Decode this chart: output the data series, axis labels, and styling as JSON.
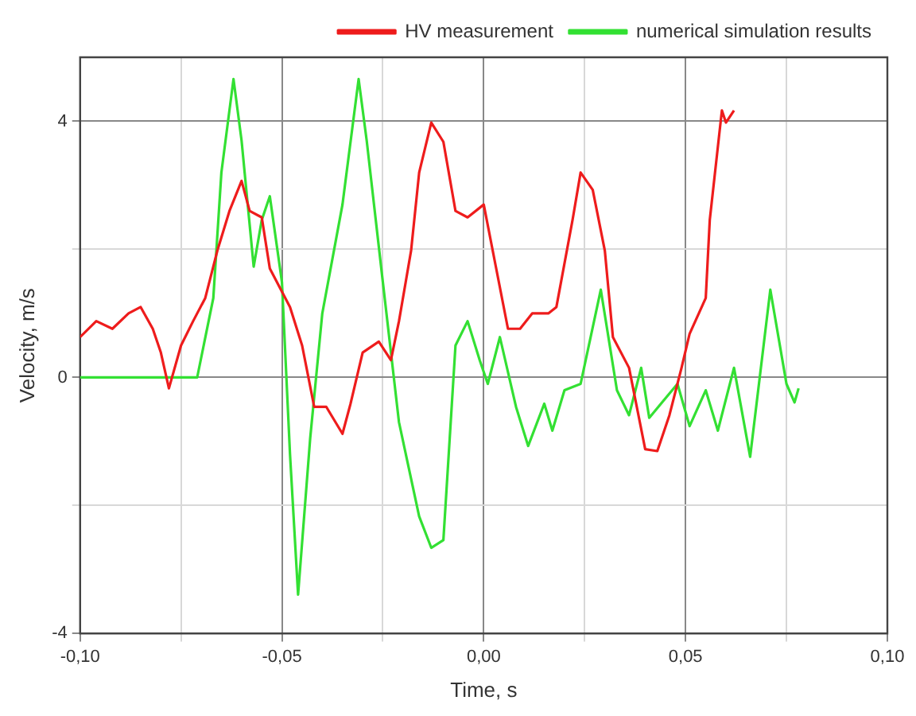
{
  "chart_data": {
    "type": "line",
    "xlabel": "Time, s",
    "ylabel": "Velocity, m/s",
    "xlim": [
      -0.1,
      0.1
    ],
    "xticks": [
      {
        "value": -0.1,
        "label": "-0,10"
      },
      {
        "value": -0.075,
        "label": null
      },
      {
        "value": -0.05,
        "label": "-0,05"
      },
      {
        "value": -0.025,
        "label": null
      },
      {
        "value": 0,
        "label": "0,00"
      },
      {
        "value": 0.025,
        "label": null
      },
      {
        "value": 0.05,
        "label": "0,05"
      },
      {
        "value": 0.075,
        "label": null
      },
      {
        "value": 0.1,
        "label": "0,10"
      }
    ],
    "ylim": [
      -4,
      5
    ],
    "yticks": [
      -4,
      {
        "value": -2,
        "label": null
      },
      0,
      {
        "value": 2,
        "label": null
      },
      4
    ],
    "grid": true,
    "legend": "top right",
    "marker": "none",
    "line_style": "solid",
    "series": [
      {
        "name": "HV measurement",
        "color": "#ee1c1c",
        "x": [
          -0.1,
          -0.096,
          -0.092,
          -0.088,
          -0.085,
          -0.082,
          -0.08,
          -0.078,
          -0.075,
          -0.072,
          -0.069,
          -0.066,
          -0.063,
          -0.06,
          -0.058,
          -0.055,
          -0.053,
          -0.048,
          -0.045,
          -0.042,
          -0.039,
          -0.035,
          -0.033,
          -0.03,
          -0.026,
          -0.023,
          -0.021,
          -0.018,
          -0.016,
          -0.013,
          -0.01,
          -0.007,
          -0.004,
          0,
          0.003,
          0.006,
          0.009,
          0.012,
          0.016,
          0.018,
          0.022,
          0.024,
          0.027,
          0.03,
          0.032,
          0.036,
          0.04,
          0.043,
          0.046,
          0.049,
          0.051,
          0.055,
          0.056,
          0.059,
          0.06,
          0.062
        ],
        "values": [
          0.63,
          0.88,
          0.76,
          1.0,
          1.1,
          0.76,
          0.39,
          -0.17,
          0.5,
          0.88,
          1.24,
          1.98,
          2.6,
          3.07,
          2.6,
          2.5,
          1.7,
          1.1,
          0.5,
          -0.46,
          -0.46,
          -0.88,
          -0.41,
          0.39,
          0.56,
          0.27,
          0.88,
          1.98,
          3.2,
          3.98,
          3.68,
          2.6,
          2.5,
          2.7,
          1.73,
          0.76,
          0.76,
          1.0,
          1.0,
          1.1,
          2.46,
          3.2,
          2.93,
          1.98,
          0.63,
          0.15,
          -1.12,
          -1.15,
          -0.59,
          0.15,
          0.68,
          1.24,
          2.46,
          4.17,
          3.98,
          4.17
        ]
      },
      {
        "name": "numerical simulation results",
        "color": "#33e033",
        "x": [
          -0.1,
          -0.071,
          -0.067,
          -0.065,
          -0.062,
          -0.06,
          -0.057,
          -0.055,
          -0.053,
          -0.05,
          -0.048,
          -0.046,
          -0.043,
          -0.04,
          -0.035,
          -0.032,
          -0.031,
          -0.029,
          -0.025,
          -0.021,
          -0.016,
          -0.013,
          -0.01,
          -0.007,
          -0.004,
          -0.001,
          0.001,
          0.004,
          0.008,
          0.011,
          0.015,
          0.017,
          0.02,
          0.024,
          0.029,
          0.033,
          0.036,
          0.039,
          0.041,
          0.048,
          0.051,
          0.055,
          0.058,
          0.062,
          0.066,
          0.071,
          0.075,
          0.077,
          0.078
        ],
        "values": [
          0,
          0,
          1.24,
          3.2,
          4.66,
          3.7,
          1.73,
          2.46,
          2.83,
          1.49,
          -1.2,
          -3.39,
          -0.95,
          1.0,
          2.7,
          4.17,
          4.66,
          3.7,
          1.49,
          -0.7,
          -2.17,
          -2.66,
          -2.54,
          0.5,
          0.88,
          0.27,
          -0.1,
          0.63,
          -0.46,
          -1.07,
          -0.41,
          -0.83,
          -0.2,
          -0.1,
          1.37,
          -0.2,
          -0.59,
          0.15,
          -0.63,
          -0.1,
          -0.76,
          -0.2,
          -0.83,
          0.15,
          -1.24,
          1.37,
          -0.1,
          -0.39,
          -0.17
        ]
      }
    ]
  }
}
